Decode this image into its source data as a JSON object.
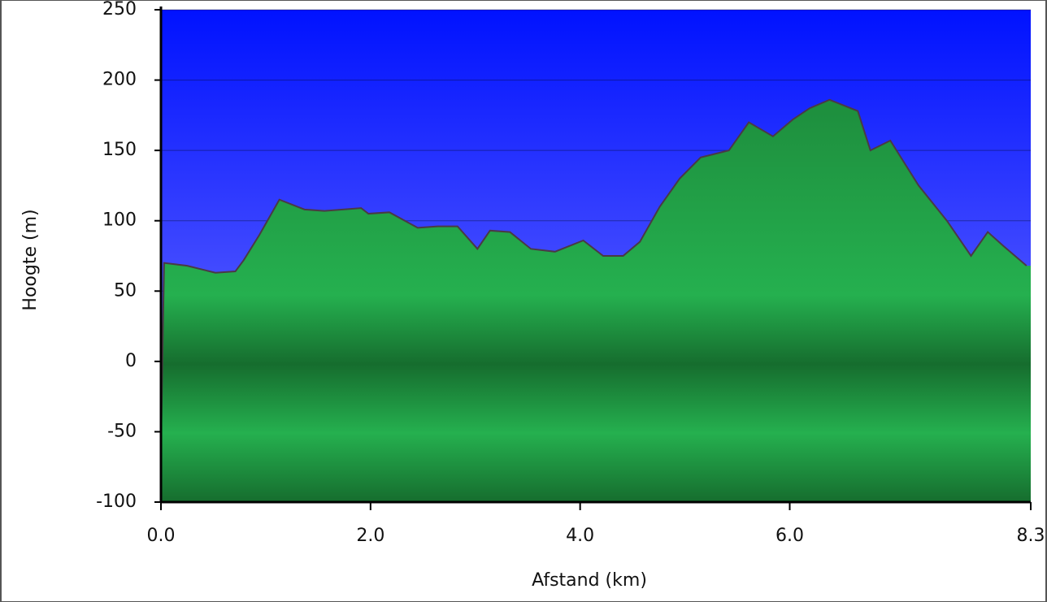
{
  "chart_data": {
    "type": "area",
    "y_label": "Hoogte (m)",
    "x_label": "Afstand  (km)",
    "x": [
      0.0,
      0.03,
      0.25,
      0.52,
      0.71,
      0.79,
      0.94,
      1.13,
      1.37,
      1.56,
      1.91,
      1.98,
      2.18,
      2.45,
      2.64,
      2.83,
      3.02,
      3.14,
      3.33,
      3.53,
      3.76,
      4.03,
      4.22,
      4.41,
      4.57,
      4.76,
      4.95,
      5.15,
      5.42,
      5.61,
      5.84,
      6.03,
      6.19,
      6.38,
      6.65,
      6.77,
      6.96,
      7.23,
      7.5,
      7.73,
      7.89,
      8.04,
      8.26
    ],
    "values": [
      -60,
      70,
      68,
      63,
      64,
      72,
      90,
      115,
      108,
      107,
      109,
      105,
      106,
      95,
      96,
      96,
      80,
      93,
      92,
      80,
      78,
      86,
      75,
      75,
      85,
      110,
      130,
      145,
      150,
      170,
      160,
      172,
      180,
      186,
      178,
      150,
      157,
      125,
      100,
      75,
      92,
      82,
      68
    ],
    "color": "#22a94a",
    "line_color": "#4a3a44",
    "xlim": [
      0,
      8.3
    ],
    "xticks": [
      {
        "value": 0,
        "label": "0.0"
      },
      {
        "value": 2,
        "label": "2.0"
      },
      {
        "value": 4,
        "label": "4.0"
      },
      {
        "value": 6,
        "label": "6.0"
      },
      {
        "value": 8.3,
        "label": "8.3"
      }
    ],
    "ylim": [
      -100,
      250
    ],
    "yticks": [
      250,
      200,
      150,
      100,
      50,
      0,
      -50,
      -100
    ],
    "grid": true
  }
}
